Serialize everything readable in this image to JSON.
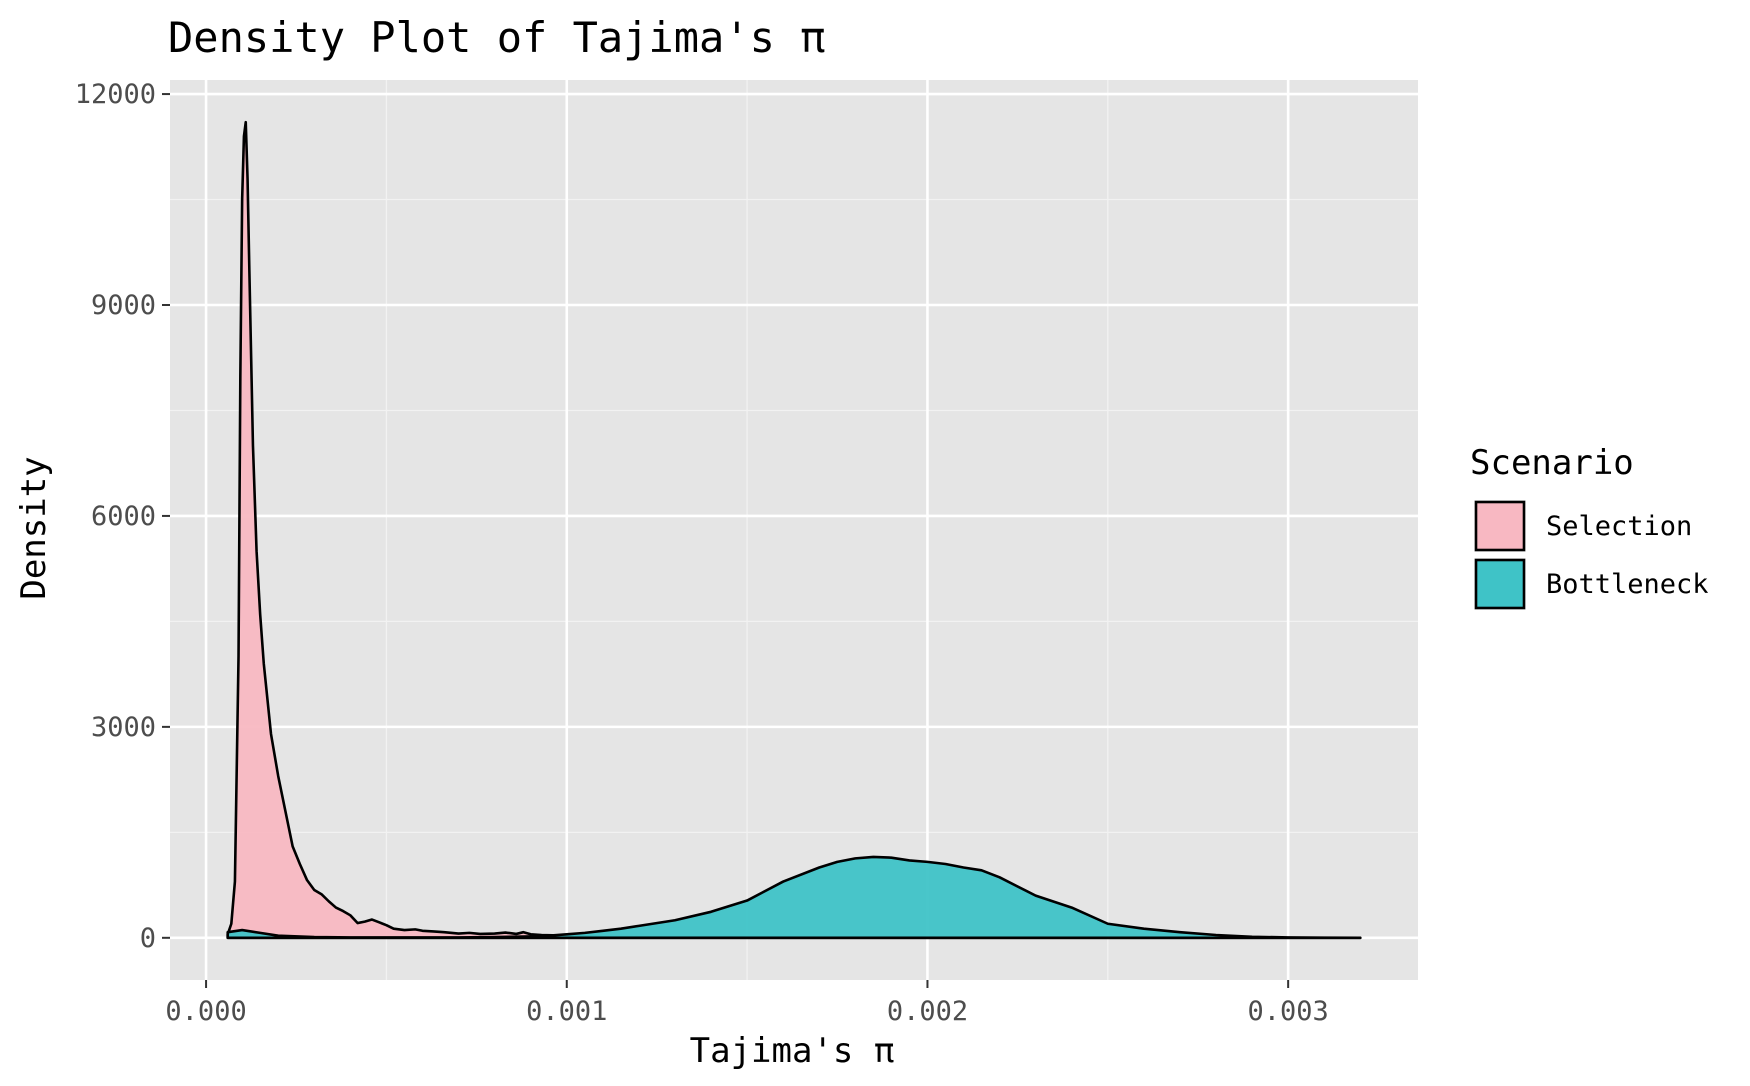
{
  "chart_data": {
    "type": "area",
    "title": "Density Plot of Tajima's π",
    "xlabel": "Tajima's π",
    "ylabel": "Density",
    "xlim": [
      -0.0001,
      0.00336
    ],
    "ylim": [
      -600,
      12200
    ],
    "x_ticks": [
      0.0,
      0.001,
      0.002,
      0.003
    ],
    "x_tick_labels": [
      "0.000",
      "0.001",
      "0.002",
      "0.003"
    ],
    "y_ticks": [
      0,
      3000,
      6000,
      9000,
      12000
    ],
    "y_tick_labels": [
      "0",
      "3000",
      "6000",
      "9000",
      "12000"
    ],
    "grid": true,
    "legend": {
      "title": "Scenario",
      "position": "right"
    },
    "series": [
      {
        "name": "Selection",
        "color": "#F8766D",
        "fill": "#F8B8C2",
        "x": [
          6e-05,
          7e-05,
          8e-05,
          9e-05,
          9.5e-05,
          0.0001,
          0.000105,
          0.00011,
          0.000115,
          0.00012,
          0.00013,
          0.00014,
          0.00015,
          0.00016,
          0.00018,
          0.0002,
          0.00022,
          0.00024,
          0.00026,
          0.00028,
          0.0003,
          0.00032,
          0.00034,
          0.00036,
          0.00038,
          0.0004,
          0.00042,
          0.00044,
          0.00046,
          0.00048,
          0.0005,
          0.00052,
          0.00055,
          0.00058,
          0.0006,
          0.00063,
          0.00066,
          0.0007,
          0.00073,
          0.00076,
          0.0008,
          0.00083,
          0.00086,
          0.00088,
          0.0009,
          0.00093,
          0.00096,
          0.001,
          0.0011,
          0.0012,
          0.0013,
          0.0014,
          0.0015,
          0.0016,
          0.0017,
          0.0018,
          0.0019,
          0.002,
          0.0021,
          0.0022,
          0.0023,
          0.0024,
          0.0025,
          0.0026,
          0.0027,
          0.0028,
          0.0029,
          0.003,
          0.0031,
          0.0032
        ],
        "y": [
          50,
          200,
          800,
          4000,
          8000,
          10500,
          11400,
          11600,
          10800,
          9500,
          7000,
          5500,
          4600,
          3900,
          2900,
          2300,
          1800,
          1300,
          1050,
          820,
          680,
          620,
          520,
          430,
          380,
          320,
          210,
          230,
          260,
          220,
          180,
          130,
          110,
          120,
          100,
          90,
          80,
          60,
          70,
          55,
          60,
          75,
          55,
          80,
          50,
          40,
          35,
          25,
          10,
          8,
          5,
          5,
          3,
          3,
          2,
          2,
          2,
          2,
          1,
          1,
          1,
          1,
          1,
          1,
          0,
          0,
          0,
          0,
          0,
          0
        ]
      },
      {
        "name": "Bottleneck",
        "color": "#00BFC4",
        "fill": "#3FC3C7",
        "x": [
          6e-05,
          0.0001,
          0.00015,
          0.0002,
          0.0003,
          0.0004,
          0.0005,
          0.0006,
          0.0007,
          0.0008,
          0.0009,
          0.00095,
          0.001,
          0.00105,
          0.0011,
          0.00115,
          0.0012,
          0.0013,
          0.0014,
          0.0015,
          0.0016,
          0.0017,
          0.00175,
          0.0018,
          0.00185,
          0.0019,
          0.00195,
          0.002,
          0.00205,
          0.0021,
          0.00215,
          0.0022,
          0.0023,
          0.0024,
          0.0025,
          0.0026,
          0.0027,
          0.0028,
          0.0029,
          0.003,
          0.0031,
          0.0032
        ],
        "y": [
          80,
          110,
          70,
          30,
          10,
          5,
          5,
          5,
          5,
          10,
          20,
          30,
          50,
          70,
          100,
          130,
          170,
          250,
          370,
          530,
          800,
          1000,
          1080,
          1130,
          1150,
          1140,
          1100,
          1080,
          1050,
          1000,
          960,
          860,
          600,
          430,
          200,
          130,
          80,
          40,
          15,
          5,
          2,
          0
        ]
      }
    ]
  }
}
